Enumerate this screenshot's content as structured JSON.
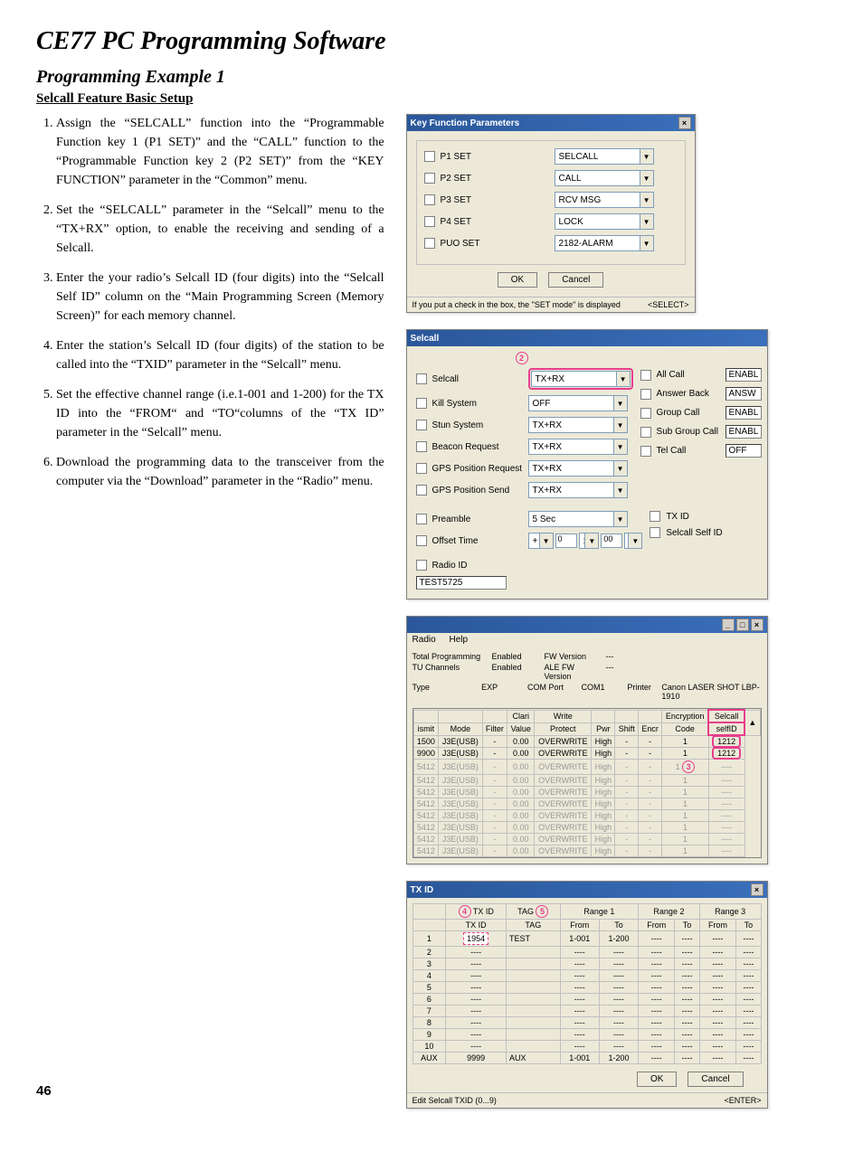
{
  "page_title": "CE77 PC Programming Software",
  "example_title": "Programming Example 1",
  "subtitle": "Selcall Feature Basic Setup",
  "page_number": "46",
  "steps": [
    "Assign the “SELCALL” function into the “Programmable Function key 1 (P1 SET)” and the “CALL” function to the “Programmable Function key 2 (P2 SET)” from the “KEY FUNCTION” parameter in the “Common” menu.",
    "Set the “SELCALL” parameter in the “Selcall” menu to the “TX+RX” option, to enable the receiving and sending of a Selcall.",
    "Enter the your radio’s Selcall ID (four digits) into the “Selcall Self ID” column on the “Main Programming Screen (Memory Screen)” for each memory channel.",
    "Enter the station’s Selcall ID (four digits) of the station to be called into the “TXID” parameter in the “Selcall” menu.",
    "Set the effective channel range (i.e.1-001 and 1-200) for the TX ID into the “FROM“ and “TO“columns of the “TX ID” parameter in the “Selcall” menu.",
    "Download the programming data to the transceiver from the computer via the “Download” parameter in the “Radio” menu."
  ],
  "win1": {
    "title": "Key Function Parameters",
    "rows": [
      {
        "label": "P1 SET",
        "value": "SELCALL"
      },
      {
        "label": "P2 SET",
        "value": "CALL"
      },
      {
        "label": "P3 SET",
        "value": "RCV MSG"
      },
      {
        "label": "P4 SET",
        "value": "LOCK"
      },
      {
        "label": "PUO SET",
        "value": "2182-ALARM"
      }
    ],
    "ok": "OK",
    "cancel": "Cancel",
    "hint": "If you put a check in the box, the \"SET mode\" is displayed",
    "hint_right": "<SELECT>"
  },
  "win2": {
    "title": "Selcall",
    "badge": "2",
    "left": [
      {
        "label": "Selcall",
        "value": "TX+RX",
        "hl": true
      },
      {
        "label": "Kill System",
        "value": "OFF"
      },
      {
        "label": "Stun System",
        "value": "TX+RX"
      },
      {
        "label": "Beacon Request",
        "value": "TX+RX"
      },
      {
        "label": "GPS Position Request",
        "value": "TX+RX"
      },
      {
        "label": "GPS Position Send",
        "value": "TX+RX"
      }
    ],
    "right": [
      {
        "label": "All Call",
        "value": "ENABL"
      },
      {
        "label": "Answer Back",
        "value": "ANSW"
      },
      {
        "label": "Group Call",
        "value": "ENABL"
      },
      {
        "label": "Sub Group Call",
        "value": "ENABL"
      },
      {
        "label": "Tel Call",
        "value": "OFF"
      }
    ],
    "bottom_left": [
      {
        "label": "Preamble",
        "value": "5 Sec"
      },
      {
        "label": "Offset Time",
        "off1": "0",
        "off2": "00",
        "sign": "+"
      }
    ],
    "bottom_right": [
      {
        "label": "TX ID"
      },
      {
        "label": "Selcall Self ID"
      }
    ],
    "radio_id_label": "Radio ID",
    "radio_id_value": "TEST5725"
  },
  "win3": {
    "menu": [
      "Radio",
      "Help"
    ],
    "info": [
      {
        "l": "Total Programming",
        "v": "Enabled",
        "l2": "FW Version",
        "v2": "---"
      },
      {
        "l": "TU Channels",
        "v": "Enabled",
        "l2": "ALE FW Version",
        "v2": "---"
      },
      {
        "l": "Type",
        "v": "EXP",
        "l2": "COM Port",
        "v2": "COM1",
        "l3": "Printer",
        "v3": "Canon LASER SHOT LBP-1910"
      }
    ],
    "headers": [
      "ismit",
      "Mode",
      "Filter",
      "Clari Value",
      "Write Protect",
      "Pwr",
      "Shift",
      "Encryption Encr",
      "Code",
      "Selcall selfID"
    ],
    "h_top": [
      "",
      "",
      "",
      "Clari",
      "Write",
      "",
      "",
      "",
      "Encryption",
      "Selcall"
    ],
    "h_bot": [
      "ismit",
      "Mode",
      "Filter",
      "Value",
      "Protect",
      "Pwr",
      "Shift",
      "Encr",
      "Code",
      "selfID"
    ],
    "rows": [
      {
        "c": [
          "1500",
          "J3E(USB)",
          "-",
          "0.00",
          "OVERWRITE",
          "High",
          "-",
          "-",
          "1",
          "1212"
        ],
        "hl_last": true
      },
      {
        "c": [
          "9900",
          "J3E(USB)",
          "-",
          "0.00",
          "OVERWRITE",
          "High",
          "-",
          "-",
          "1",
          "1212"
        ],
        "hl_last": true
      },
      {
        "c": [
          "5412",
          "J3E(USB)",
          "-",
          "0.00",
          "OVERWRITE",
          "High",
          "-",
          "-",
          "1",
          "----"
        ],
        "gray": true,
        "badge": true
      },
      {
        "c": [
          "5412",
          "J3E(USB)",
          "-",
          "0.00",
          "OVERWRITE",
          "High",
          "-",
          "-",
          "1",
          "----"
        ],
        "gray": true
      },
      {
        "c": [
          "5412",
          "J3E(USB)",
          "-",
          "0.00",
          "OVERWRITE",
          "High",
          "-",
          "-",
          "1",
          "----"
        ],
        "gray": true
      },
      {
        "c": [
          "5412",
          "J3E(USB)",
          "-",
          "0.00",
          "OVERWRITE",
          "High",
          "-",
          "-",
          "1",
          "----"
        ],
        "gray": true
      },
      {
        "c": [
          "5412",
          "J3E(USB)",
          "-",
          "0.00",
          "OVERWRITE",
          "High",
          "-",
          "-",
          "1",
          "----"
        ],
        "gray": true
      },
      {
        "c": [
          "5412",
          "J3E(USB)",
          "-",
          "0.00",
          "OVERWRITE",
          "High",
          "-",
          "-",
          "1",
          "----"
        ],
        "gray": true
      },
      {
        "c": [
          "5412",
          "J3E(USB)",
          "-",
          "0.00",
          "OVERWRITE",
          "High",
          "-",
          "-",
          "1",
          "----"
        ],
        "gray": true
      },
      {
        "c": [
          "5412",
          "J3E(USB)",
          "-",
          "0.00",
          "OVERWRITE",
          "High",
          "-",
          "-",
          "1",
          "----"
        ],
        "gray": true
      }
    ],
    "badge": "3"
  },
  "win4": {
    "title": "TX ID",
    "badge4": "4",
    "badge5": "5",
    "headers": [
      "",
      "TX ID",
      "TAG",
      "From",
      "To",
      "From",
      "To",
      "From",
      "To"
    ],
    "range_headers": [
      "Range 1",
      "Range 2",
      "Range 3"
    ],
    "rows": [
      {
        "n": "1",
        "id": "1954",
        "tag": "TEST",
        "r": [
          "1-001",
          "1-200",
          "----",
          "----",
          "----",
          "----"
        ],
        "hl": true
      },
      {
        "n": "2",
        "id": "----",
        "tag": "",
        "r": [
          "----",
          "----",
          "----",
          "----",
          "----",
          "----"
        ]
      },
      {
        "n": "3",
        "id": "----",
        "tag": "",
        "r": [
          "----",
          "----",
          "----",
          "----",
          "----",
          "----"
        ]
      },
      {
        "n": "4",
        "id": "----",
        "tag": "",
        "r": [
          "----",
          "----",
          "----",
          "----",
          "----",
          "----"
        ]
      },
      {
        "n": "5",
        "id": "----",
        "tag": "",
        "r": [
          "----",
          "----",
          "----",
          "----",
          "----",
          "----"
        ]
      },
      {
        "n": "6",
        "id": "----",
        "tag": "",
        "r": [
          "----",
          "----",
          "----",
          "----",
          "----",
          "----"
        ]
      },
      {
        "n": "7",
        "id": "----",
        "tag": "",
        "r": [
          "----",
          "----",
          "----",
          "----",
          "----",
          "----"
        ]
      },
      {
        "n": "8",
        "id": "----",
        "tag": "",
        "r": [
          "----",
          "----",
          "----",
          "----",
          "----",
          "----"
        ]
      },
      {
        "n": "9",
        "id": "----",
        "tag": "",
        "r": [
          "----",
          "----",
          "----",
          "----",
          "----",
          "----"
        ]
      },
      {
        "n": "10",
        "id": "----",
        "tag": "",
        "r": [
          "----",
          "----",
          "----",
          "----",
          "----",
          "----"
        ]
      },
      {
        "n": "AUX",
        "id": "9999",
        "tag": "AUX",
        "r": [
          "1-001",
          "1-200",
          "----",
          "----",
          "----",
          "----"
        ]
      }
    ],
    "ok": "OK",
    "cancel": "Cancel",
    "hint": "Edit Selcall TXID (0...9)",
    "hint_right": "<ENTER>"
  }
}
